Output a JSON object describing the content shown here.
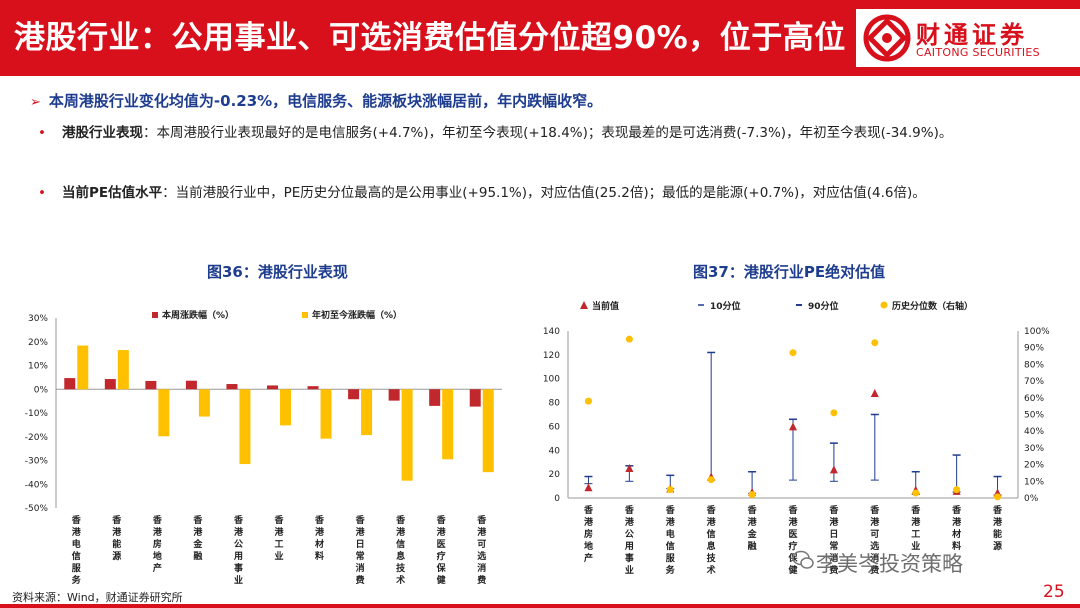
{
  "header": {
    "title": "港股行业：公用事业、可选消费估值分位超90%，位于高位",
    "logo_cn": "财通证券",
    "logo_en": "CAITONG SECURITIES"
  },
  "summary": "本周港股行业变化均值为-0.23%，电信服务、能源板块涨幅居前，年内跌幅收窄。",
  "bullets": [
    {
      "label": "港股行业表现",
      "text": "：本周港股行业表现最好的是电信服务(+4.7%)，年初至今表现(+18.4%)；表现最差的是可选消费(-7.3%)，年初至今表现(-34.9%)。"
    },
    {
      "label": "当前PE估值水平",
      "text": "：当前港股行业中，PE历史分位最高的是公用事业(+95.1%)，对应估值(25.2倍)；最低的是能源(+0.7%)，对应估值(4.6倍)。"
    }
  ],
  "footer": {
    "source": "资料来源：Wind，财通证券研究所",
    "watermark": "李美岑投资策略",
    "page": "25"
  },
  "colors": {
    "brand_red": "#d8101c",
    "navy": "#1f3d8f",
    "bar_red": "#c0282d",
    "bar_yellow": "#ffc000",
    "line_blue": "#1f3d8f",
    "marker_yellow": "#ffc000"
  },
  "chart_data": [
    {
      "type": "bar",
      "title": "图36：港股行业表现",
      "categories": [
        "香港电信服务",
        "香港能源",
        "香港房地产",
        "香港金融",
        "香港公用事业",
        "香港工业",
        "香港材料",
        "香港日常消费",
        "香港信息技术",
        "香港医疗保健",
        "香港可选消费"
      ],
      "series": [
        {
          "name": "本周涨跌幅（%）",
          "values": [
            4.7,
            4.3,
            3.5,
            3.6,
            2.2,
            1.6,
            1.3,
            -4.2,
            -4.8,
            -7.0,
            -7.3
          ]
        },
        {
          "name": "年初至今涨跌幅（%）",
          "values": [
            18.4,
            16.5,
            -19.8,
            -11.5,
            -31.5,
            -15.2,
            -20.8,
            -19.3,
            -38.5,
            -29.5,
            -34.9
          ]
        }
      ],
      "ylim": [
        -50,
        30
      ],
      "yticks": [
        "30%",
        "20%",
        "10%",
        "0%",
        "-10%",
        "-20%",
        "-30%",
        "-40%",
        "-50%"
      ],
      "legend": "top"
    },
    {
      "type": "scatter",
      "title": "图37：港股行业PE绝对估值",
      "categories": [
        "香港房地产",
        "香港公用事业",
        "香港电信服务",
        "香港信息技术",
        "香港金融",
        "香港医疗保健",
        "香港日常消费",
        "香港可选消费",
        "香港工业",
        "香港材料",
        "香港能源"
      ],
      "series": [
        {
          "name": "当前值",
          "values": [
            9,
            25.2,
            8,
            18,
            5,
            60,
            24,
            88,
            7,
            6,
            4.6
          ]
        },
        {
          "name": "10分位",
          "values": [
            12,
            14,
            8,
            15,
            4,
            15,
            14,
            15,
            3,
            5,
            2.5
          ]
        },
        {
          "name": "90分位",
          "values": [
            18,
            27,
            19,
            122,
            22,
            66,
            46,
            70,
            22,
            36,
            18
          ]
        },
        {
          "name": "历史分位数（右轴）",
          "values": [
            58,
            95.1,
            5,
            11,
            2,
            87,
            51,
            93,
            3,
            5,
            0.7
          ]
        }
      ],
      "ylim_left": [
        0,
        140
      ],
      "yticks_left": [
        "140",
        "120",
        "100",
        "80",
        "60",
        "40",
        "20",
        "0"
      ],
      "ylim_right": [
        0,
        100
      ],
      "yticks_right": [
        "100%",
        "90%",
        "80%",
        "70%",
        "60%",
        "50%",
        "40%",
        "30%",
        "20%",
        "10%",
        "0%"
      ],
      "legend": "top"
    }
  ]
}
